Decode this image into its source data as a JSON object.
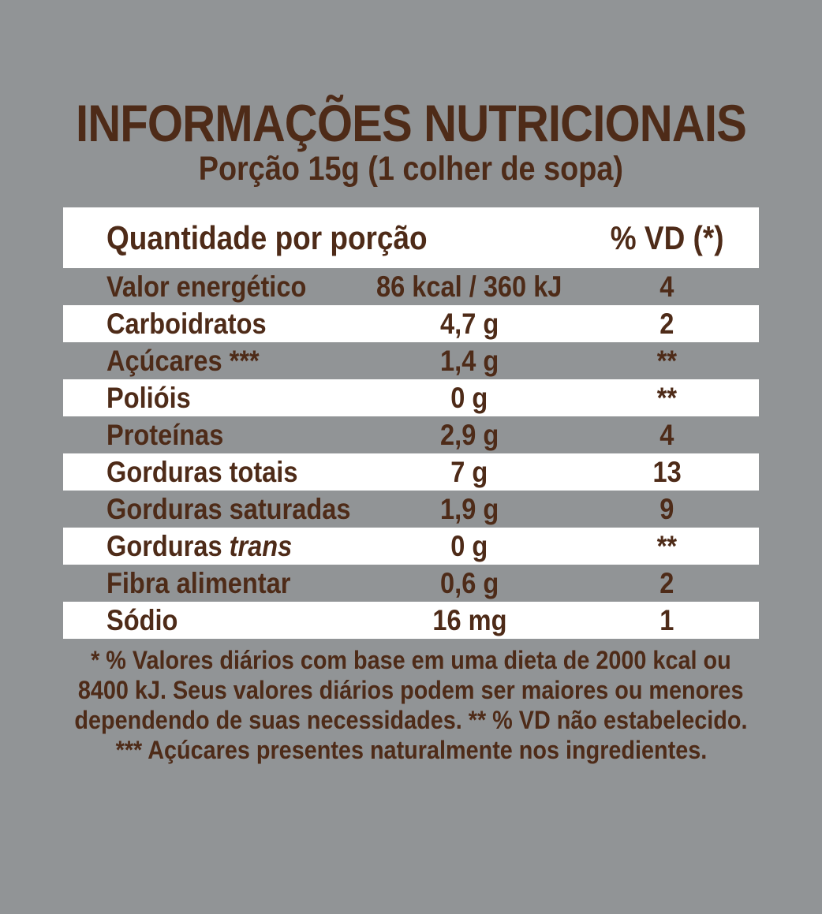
{
  "colors": {
    "background": "#919496",
    "panel": "#ffffff",
    "text": "#4e2b18"
  },
  "header": {
    "title": "INFORMAÇÕES NUTRICIONAIS",
    "subtitle": "Porção 15g (1 colher de sopa)"
  },
  "table": {
    "columns": {
      "quantity": "Quantidade por porção",
      "daily_value": "% VD (*)"
    },
    "rows": [
      {
        "label": "Valor energético",
        "amount": "86 kcal / 360 kJ",
        "dv": "4",
        "bg": "gray"
      },
      {
        "label": "Carboidratos",
        "amount": "4,7 g",
        "dv": "2",
        "bg": "white"
      },
      {
        "label": "Açúcares ***",
        "amount": "1,4 g",
        "dv": "**",
        "bg": "gray"
      },
      {
        "label": "Polióis",
        "amount": "0 g",
        "dv": "**",
        "bg": "white"
      },
      {
        "label": "Proteínas",
        "amount": "2,9 g",
        "dv": "4",
        "bg": "gray"
      },
      {
        "label": "Gorduras totais",
        "amount": "7 g",
        "dv": "13",
        "bg": "white"
      },
      {
        "label": "Gorduras saturadas",
        "amount": "1,9 g",
        "dv": "9",
        "bg": "gray"
      },
      {
        "label": "Gorduras ",
        "label_italic": "trans",
        "amount": "0 g",
        "dv": "**",
        "bg": "white"
      },
      {
        "label": "Fibra alimentar",
        "amount": "0,6 g",
        "dv": "2",
        "bg": "gray"
      },
      {
        "label": "Sódio",
        "amount": "16 mg",
        "dv": "1",
        "bg": "white"
      }
    ]
  },
  "footnotes": {
    "lines": [
      "* % Valores diários com base em uma dieta de 2000 kcal ou",
      "8400 kJ. Seus valores diários podem ser maiores ou menores",
      "dependendo de suas necessidades. ** % VD não estabelecido.",
      "*** Açúcares presentes naturalmente nos ingredientes."
    ]
  }
}
